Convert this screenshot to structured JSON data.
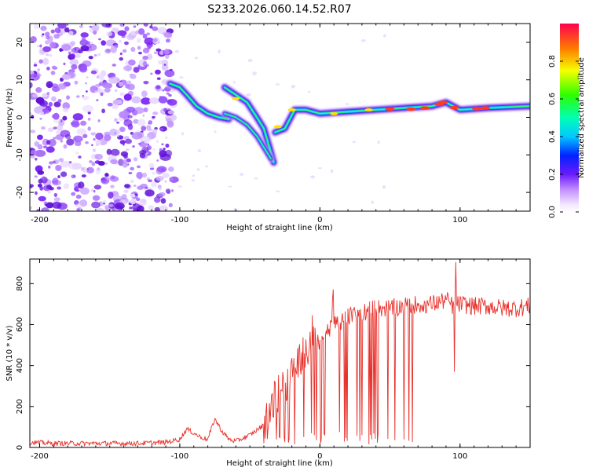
{
  "chart_data": [
    {
      "type": "heatmap",
      "title": "S233.2026.060.14.52.R07",
      "xlabel": "Height of straight line (km)",
      "ylabel": "Frequency (Hz)",
      "xlim": [
        -207,
        150
      ],
      "ylim": [
        -25,
        25
      ],
      "xticks": [
        -200,
        -100,
        0,
        100
      ],
      "yticks": [
        -20,
        -10,
        0,
        10,
        20
      ],
      "colorbar": {
        "label": "Normalized spectral amplitude",
        "range": [
          0.0,
          1.0
        ],
        "ticks": [
          0.0,
          0.2,
          0.4,
          0.6,
          0.8
        ]
      },
      "features": [
        {
          "name": "noise-region",
          "x_range": [
            -207,
            -108
          ],
          "y_range": [
            -25,
            25
          ]
        },
        {
          "name": "branch-1",
          "points": [
            [
              -107,
              9
            ],
            [
              -100,
              8
            ],
            [
              -95,
              6
            ],
            [
              -88,
              3
            ],
            [
              -80,
              1
            ],
            [
              -72,
              0
            ],
            [
              -65,
              -0.5
            ]
          ]
        },
        {
          "name": "branch-2",
          "points": [
            [
              -68,
              8
            ],
            [
              -60,
              6
            ],
            [
              -52,
              4
            ],
            [
              -45,
              0
            ],
            [
              -40,
              -3
            ],
            [
              -36,
              -8
            ],
            [
              -33,
              -12
            ]
          ]
        },
        {
          "name": "v-track",
          "points": [
            [
              -68,
              1
            ],
            [
              -60,
              0
            ],
            [
              -52,
              -2
            ],
            [
              -45,
              -5
            ],
            [
              -40,
              -8
            ],
            [
              -35,
              -11
            ]
          ]
        },
        {
          "name": "right-branch",
          "points": [
            [
              -32,
              -4
            ],
            [
              -25,
              -3
            ],
            [
              -18,
              2
            ],
            [
              -10,
              2
            ],
            [
              0,
              1
            ],
            [
              20,
              1.5
            ],
            [
              40,
              2
            ],
            [
              60,
              2.5
            ],
            [
              80,
              3
            ],
            [
              90,
              4
            ],
            [
              100,
              2
            ],
            [
              120,
              2.5
            ],
            [
              150,
              3
            ]
          ]
        }
      ]
    },
    {
      "type": "line",
      "title": "",
      "xlabel": "Height of straight line (km)",
      "ylabel": "SNR (10 * v/v)",
      "xlim": [
        -207,
        150
      ],
      "ylim": [
        0,
        920
      ],
      "xticks": [
        -200,
        -100,
        0,
        100
      ],
      "yticks": [
        0,
        200,
        400,
        600,
        800
      ],
      "series": [
        {
          "name": "SNR",
          "color": "#e8302a",
          "x": [
            -207,
            -190,
            -170,
            -150,
            -130,
            -110,
            -100,
            -95,
            -90,
            -85,
            -80,
            -75,
            -70,
            -65,
            -60,
            -50,
            -40,
            -35,
            -30,
            -25,
            -20,
            -15,
            -10,
            -5,
            0,
            5,
            10,
            15,
            20,
            25,
            30,
            35,
            40,
            45,
            50,
            60,
            70,
            80,
            90,
            95,
            100,
            110,
            120,
            130,
            140,
            150
          ],
          "values": [
            25,
            20,
            20,
            20,
            20,
            25,
            40,
            90,
            70,
            50,
            40,
            140,
            80,
            40,
            30,
            60,
            110,
            210,
            260,
            300,
            380,
            430,
            470,
            500,
            540,
            570,
            600,
            620,
            640,
            650,
            660,
            670,
            680,
            680,
            680,
            690,
            700,
            700,
            720,
            690,
            700,
            690,
            690,
            680,
            680,
            690
          ]
        }
      ],
      "annotations": [
        {
          "name": "peak",
          "x": 97,
          "y": 905
        },
        {
          "name": "dip",
          "x": 96,
          "y": 370
        }
      ]
    }
  ]
}
